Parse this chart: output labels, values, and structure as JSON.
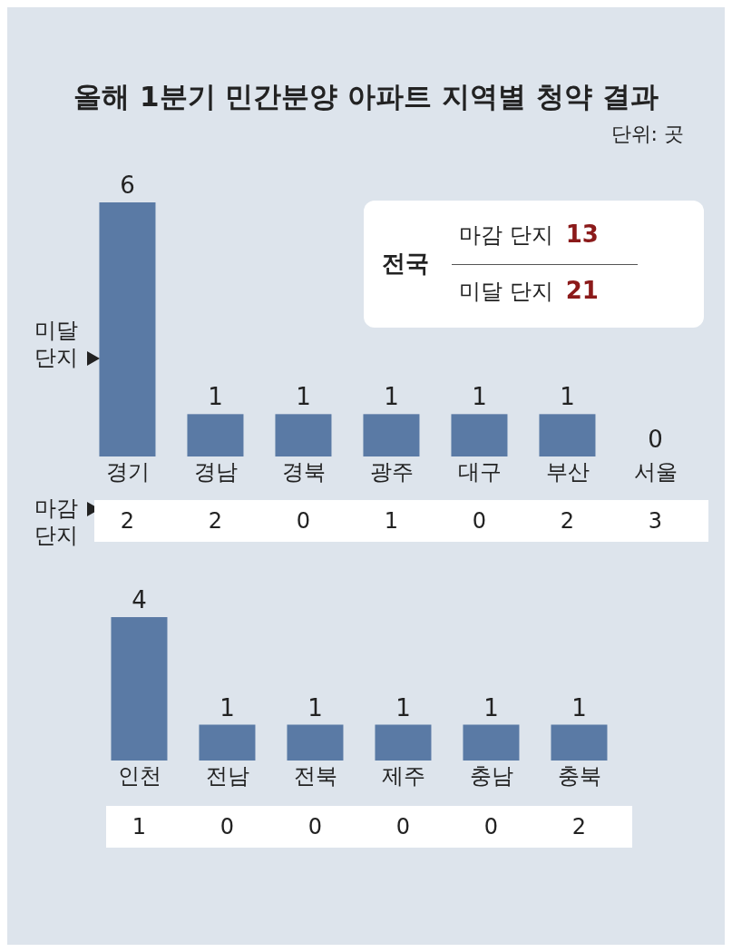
{
  "chart_data": [
    {
      "type": "bar",
      "title": "올해 1분기 민간분양 아파트 지역별 청약 결과",
      "subtitle": "단위: 곳",
      "categories": [
        "경기",
        "경남",
        "경북",
        "광주",
        "대구",
        "부산",
        "서울"
      ],
      "data_labels": true,
      "series": [
        {
          "name": "미달 단지",
          "color": "#5a7aa5",
          "values": [
            6,
            1,
            1,
            1,
            1,
            1,
            0
          ]
        }
      ]
    },
    {
      "type": "other",
      "title": "마감 단지",
      "value_labels": [
        "2",
        "2",
        "0",
        "1",
        "0",
        "2",
        "3"
      ]
    },
    {
      "type": "other",
      "title": "전국",
      "categories": [
        "마감 단지",
        "미달 단지"
      ],
      "value_labels": [
        "13",
        "21"
      ]
    },
    {
      "type": "bar",
      "categories": [
        "인천",
        "전남",
        "전북",
        "제주",
        "충남",
        "충북"
      ],
      "data_labels": true,
      "series": [
        {
          "color": "#5a7aa5",
          "values": [
            4,
            1,
            1,
            1,
            1,
            1
          ]
        }
      ]
    },
    {
      "type": "other",
      "value_labels": [
        "1",
        "0",
        "0",
        "0",
        "0",
        "2"
      ]
    }
  ]
}
